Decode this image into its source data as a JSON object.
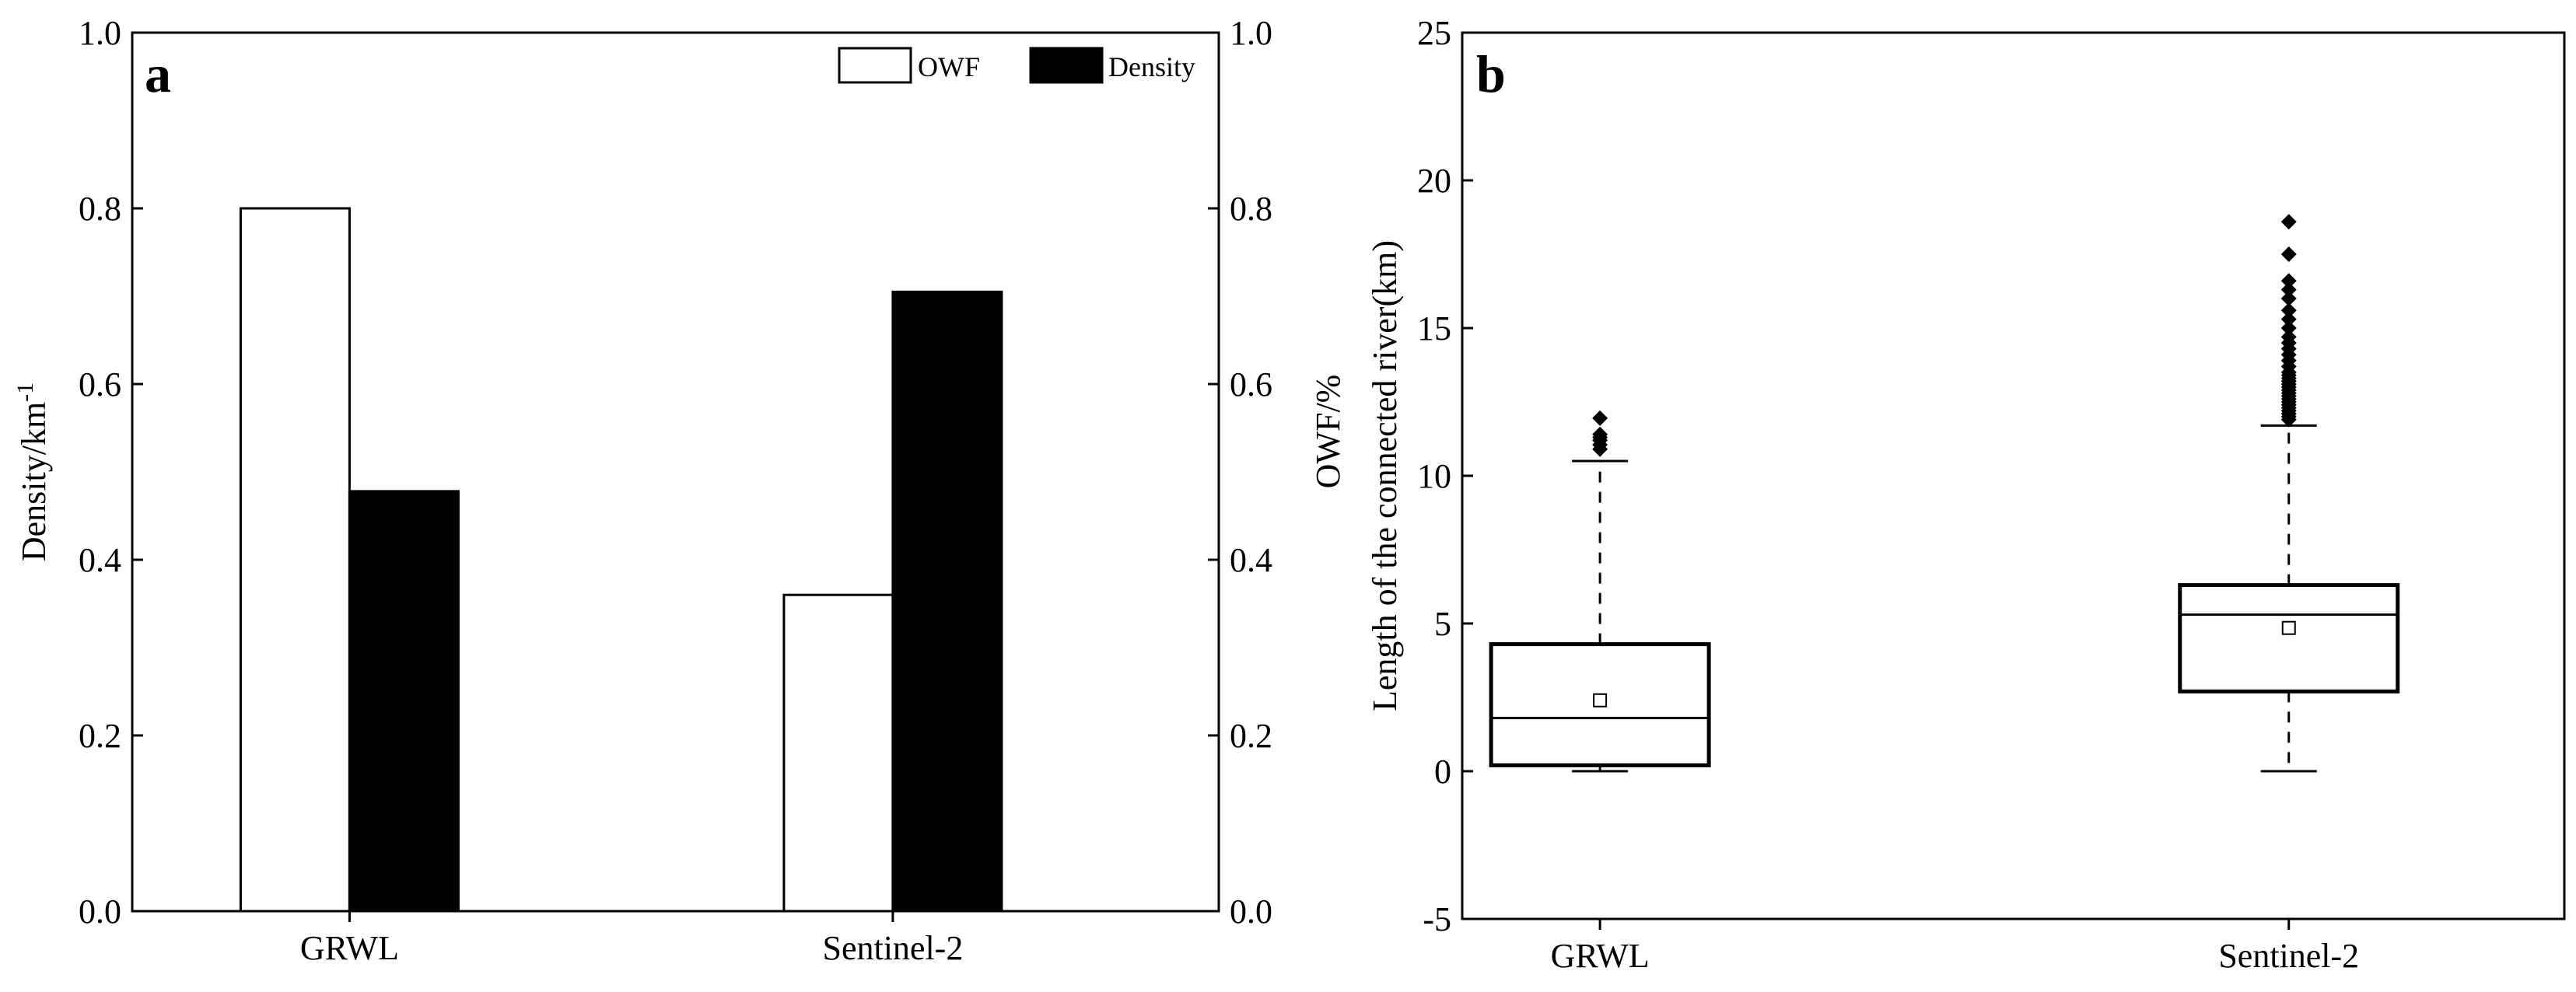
{
  "chart_data": [
    {
      "type": "bar",
      "panel_label": "a",
      "categories": [
        "GRWL",
        "Sentinel-2"
      ],
      "series": [
        {
          "name": "OWF",
          "axis": "right",
          "fill": "#ffffff",
          "values": [
            0.8,
            0.36
          ]
        },
        {
          "name": "Density",
          "axis": "left",
          "fill": "#000000",
          "values": [
            0.478,
            0.705
          ]
        }
      ],
      "ylabel_left": "Density/km",
      "ylabel_left_sup": "-1",
      "ylabel_right": "OWF/%",
      "ylim": [
        0,
        1.0
      ],
      "yticks": [
        "0.0",
        "0.2",
        "0.4",
        "0.6",
        "0.8",
        "1.0"
      ],
      "ytick_values": [
        0,
        0.2,
        0.4,
        0.6,
        0.8,
        1.0
      ],
      "legend_position": "top-right"
    },
    {
      "type": "box",
      "panel_label": "b",
      "categories": [
        "GRWL",
        "Sentinel-2"
      ],
      "ylabel": "Length of the connected river(km)",
      "ylim": [
        -5,
        25
      ],
      "yticks": [
        "-5",
        "0",
        "5",
        "10",
        "15",
        "20",
        "25"
      ],
      "ytick_values": [
        -5,
        0,
        5,
        10,
        15,
        20,
        25
      ],
      "boxes": [
        {
          "name": "GRWL",
          "whisker_low": 0.0,
          "q1": 0.2,
          "median": 1.8,
          "q3": 4.3,
          "whisker_high": 10.5,
          "mean": 2.4,
          "outliers": [
            10.9,
            11.05,
            11.2,
            11.3,
            11.4,
            11.95
          ]
        },
        {
          "name": "Sentinel-2",
          "whisker_low": 0.0,
          "q1": 2.7,
          "median": 5.3,
          "q3": 6.3,
          "whisker_high": 11.7,
          "mean": 4.85,
          "outliers": [
            11.9,
            12.0,
            12.1,
            12.2,
            12.3,
            12.4,
            12.5,
            12.6,
            12.7,
            12.8,
            12.9,
            13.0,
            13.1,
            13.2,
            13.3,
            13.4,
            13.5,
            13.7,
            13.9,
            14.1,
            14.3,
            14.5,
            14.7,
            15.0,
            15.3,
            15.6,
            16.0,
            16.3,
            16.6,
            17.5,
            18.6
          ]
        }
      ]
    }
  ]
}
